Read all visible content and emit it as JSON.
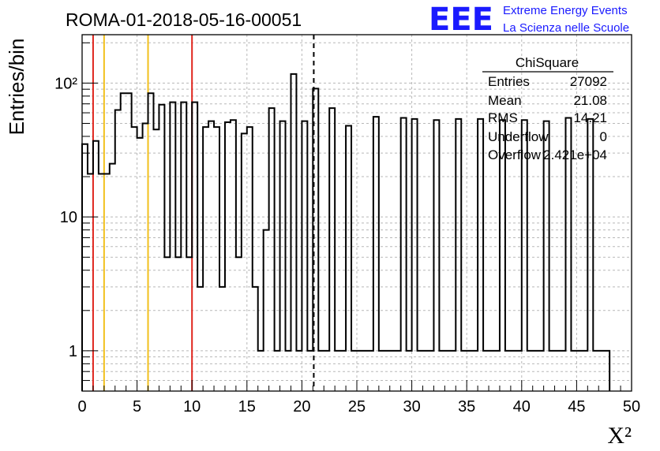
{
  "header": {
    "run_title": "ROMA-01-2018-05-16-00051",
    "logo_text": "EEE",
    "brand_line1": "Extreme Energy Events",
    "brand_line2": "La Scienza nelle Scuole"
  },
  "stats": {
    "name": "ChiSquare",
    "rows": [
      {
        "label": "Entries",
        "value": "27092"
      },
      {
        "label": "Mean",
        "value": "21.08"
      },
      {
        "label": "RMS",
        "value": "14.21"
      },
      {
        "label": "Underflow",
        "value": "0"
      },
      {
        "label": "Overflow",
        "value": "2.421e+04"
      }
    ]
  },
  "chart_data": {
    "type": "histogram",
    "title": "ROMA-01-2018-05-16-00051",
    "xlabel": "X²",
    "ylabel": "Entries/bin",
    "xlim": [
      0,
      50
    ],
    "ylim": [
      0.5,
      230
    ],
    "yscale": "log",
    "grid": true,
    "bin_width": 0.5,
    "x_ticks": [
      "0",
      "5",
      "10",
      "15",
      "20",
      "25",
      "30",
      "35",
      "40",
      "45",
      "50"
    ],
    "y_ticks": [
      {
        "value": 1,
        "label": "1"
      },
      {
        "value": 10,
        "label": "10"
      },
      {
        "value": 100,
        "label": "10²"
      }
    ],
    "bin_counts": [
      35,
      21,
      37,
      21,
      21,
      25,
      63,
      84,
      84,
      47,
      39,
      50,
      84,
      45,
      69,
      5,
      72,
      5,
      72,
      5,
      72,
      3,
      47,
      52,
      47,
      3,
      51,
      53,
      5,
      42,
      47,
      3,
      1,
      8,
      65,
      1,
      52,
      1,
      117,
      1,
      52,
      1,
      91,
      1,
      1,
      65,
      1,
      1,
      48,
      1,
      1,
      1,
      1,
      56,
      1,
      1,
      1,
      1,
      55,
      1,
      54,
      1,
      1,
      1,
      53,
      1,
      1,
      1,
      54,
      1,
      1,
      1,
      54,
      1,
      1,
      1,
      53,
      1,
      1,
      1,
      53,
      1,
      1,
      1,
      52,
      1,
      1,
      1,
      55,
      1,
      1,
      1,
      54,
      1,
      1,
      1
    ],
    "reference_lines": [
      {
        "x": 1,
        "color": "#e0251d",
        "style": "solid"
      },
      {
        "x": 2,
        "color": "#f2c01c",
        "style": "solid"
      },
      {
        "x": 6,
        "color": "#f2c01c",
        "style": "solid"
      },
      {
        "x": 10,
        "color": "#e0251d",
        "style": "solid"
      },
      {
        "x": 21.08,
        "color": "#000000",
        "style": "dashed"
      }
    ],
    "colors": {
      "line": "#000000",
      "grid": "#b8b8b8"
    }
  }
}
